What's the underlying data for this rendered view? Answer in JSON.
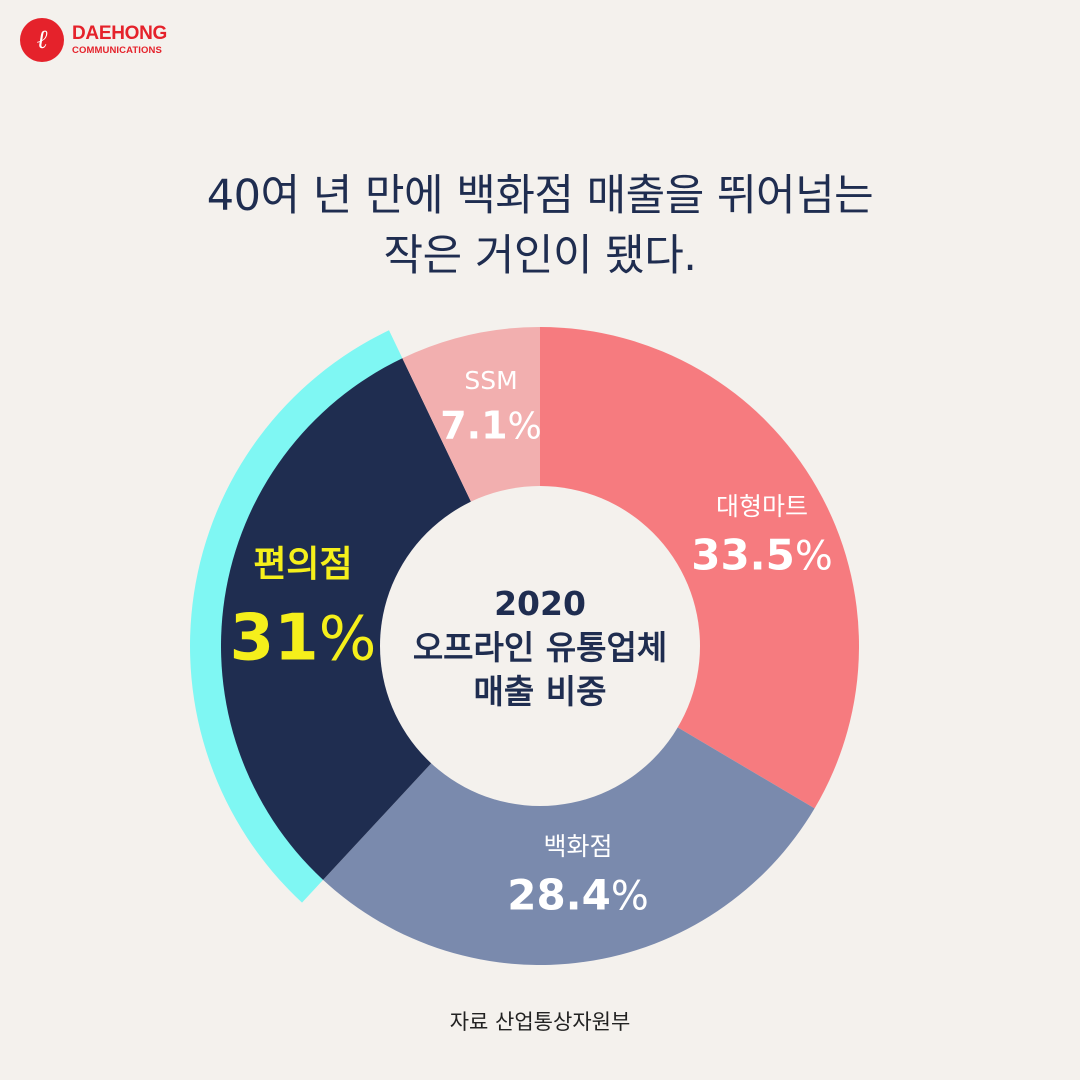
{
  "logo": {
    "mark": "ℓ",
    "name": "DAEHONG",
    "sub": "COMMUNICATIONS"
  },
  "headline": {
    "line1": "40여 년 만에 백화점 매출을 뛰어넘는",
    "line2": "작은 거인이 됐다."
  },
  "chart_data": {
    "type": "pie",
    "title": "2020 오프라인 유통업체 매출 비중",
    "center_lines": [
      "2020",
      "오프라인 유통업체",
      "매출 비중"
    ],
    "unit": "%",
    "highlight": "편의점",
    "slices": [
      {
        "label": "대형마트",
        "value": 33.5,
        "display": "33.5",
        "color": "#f67b7f",
        "label_color": "#ffffff"
      },
      {
        "label": "백화점",
        "value": 28.4,
        "display": "28.4",
        "color": "#7a8aad",
        "label_color": "#ffffff"
      },
      {
        "label": "편의점",
        "value": 31,
        "display": "31",
        "color": "#1f2d50",
        "label_color": "#f5ef1b"
      },
      {
        "label": "SSM",
        "value": 7.1,
        "display": "7.1",
        "color": "#f2afaf",
        "label_color": "#ffffff"
      }
    ],
    "highlight_color": "#7ff7f3",
    "hole_color": "#f4f1ed"
  },
  "source": "자료 산업통상자원부"
}
